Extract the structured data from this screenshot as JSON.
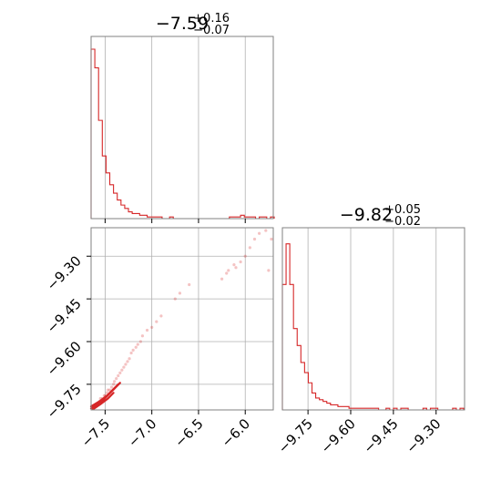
{
  "colors": {
    "series": "#d62728",
    "grid": "#b0b0b0",
    "frame": "#808080"
  },
  "chart_data": [
    {
      "type": "histogram",
      "title": {
        "median": "−7.59",
        "plus": "+0.16",
        "minus": "−0.07"
      },
      "xlim": [
        -7.65,
        -5.7
      ],
      "xticks": [
        -7.5,
        -7.0,
        -6.5,
        -6.0
      ],
      "grid": true,
      "bins": [
        [
          -7.65,
          1.0
        ],
        [
          -7.61,
          0.89
        ],
        [
          -7.57,
          0.58
        ],
        [
          -7.53,
          0.37
        ],
        [
          -7.49,
          0.27
        ],
        [
          -7.45,
          0.2
        ],
        [
          -7.41,
          0.15
        ],
        [
          -7.37,
          0.11
        ],
        [
          -7.33,
          0.08
        ],
        [
          -7.29,
          0.06
        ],
        [
          -7.25,
          0.04
        ],
        [
          -7.21,
          0.03
        ],
        [
          -7.17,
          0.03
        ],
        [
          -7.13,
          0.02
        ],
        [
          -7.09,
          0.02
        ],
        [
          -7.05,
          0.01
        ],
        [
          -7.01,
          0.01
        ],
        [
          -6.97,
          0.01
        ],
        [
          -6.93,
          0.01
        ],
        [
          -6.89,
          0.0
        ],
        [
          -6.85,
          0.0
        ],
        [
          -6.81,
          0.01
        ],
        [
          -6.77,
          0.0
        ],
        [
          -6.73,
          0.0
        ],
        [
          -6.69,
          0.0
        ],
        [
          -6.65,
          0.0
        ],
        [
          -6.61,
          0.0
        ],
        [
          -6.57,
          0.0
        ],
        [
          -6.53,
          0.0
        ],
        [
          -6.49,
          0.0
        ],
        [
          -6.45,
          0.0
        ],
        [
          -6.41,
          0.0
        ],
        [
          -6.37,
          0.0
        ],
        [
          -6.33,
          0.0
        ],
        [
          -6.29,
          0.0
        ],
        [
          -6.25,
          0.0
        ],
        [
          -6.21,
          0.0
        ],
        [
          -6.17,
          0.01
        ],
        [
          -6.13,
          0.01
        ],
        [
          -6.09,
          0.01
        ],
        [
          -6.05,
          0.02
        ],
        [
          -6.01,
          0.01
        ],
        [
          -5.97,
          0.01
        ],
        [
          -5.93,
          0.01
        ],
        [
          -5.89,
          0.0
        ],
        [
          -5.85,
          0.01
        ],
        [
          -5.81,
          0.01
        ],
        [
          -5.77,
          0.0
        ],
        [
          -5.73,
          0.01
        ]
      ]
    },
    {
      "type": "scatter",
      "xlim": [
        -7.65,
        -5.7
      ],
      "ylim": [
        -9.84,
        -9.2
      ],
      "xticks": [
        -7.5,
        -7.0,
        -6.5,
        -6.0
      ],
      "yticks": [
        -9.3,
        -9.45,
        -9.6,
        -9.75
      ],
      "xtick_labels": [
        "−7.5",
        "−7.0",
        "−6.5",
        "−6.0"
      ],
      "ytick_labels": [
        "−9.30",
        "−9.45",
        "−9.60",
        "−9.75"
      ],
      "grid": true,
      "points": [
        [
          -7.62,
          -9.83
        ],
        [
          -7.6,
          -9.82
        ],
        [
          -7.58,
          -9.82
        ],
        [
          -7.56,
          -9.81
        ],
        [
          -7.55,
          -9.8
        ],
        [
          -7.53,
          -9.8
        ],
        [
          -7.51,
          -9.79
        ],
        [
          -7.5,
          -9.79
        ],
        [
          -7.48,
          -9.78
        ],
        [
          -7.47,
          -9.77
        ],
        [
          -7.45,
          -9.77
        ],
        [
          -7.43,
          -9.76
        ],
        [
          -7.41,
          -9.75
        ],
        [
          -7.4,
          -9.74
        ],
        [
          -7.38,
          -9.73
        ],
        [
          -7.36,
          -9.72
        ],
        [
          -7.34,
          -9.71
        ],
        [
          -7.32,
          -9.7
        ],
        [
          -7.3,
          -9.69
        ],
        [
          -7.28,
          -9.68
        ],
        [
          -7.26,
          -9.67
        ],
        [
          -7.24,
          -9.66
        ],
        [
          -7.22,
          -9.64
        ],
        [
          -7.2,
          -9.63
        ],
        [
          -7.17,
          -9.62
        ],
        [
          -7.15,
          -9.61
        ],
        [
          -7.12,
          -9.6
        ],
        [
          -7.1,
          -9.58
        ],
        [
          -7.05,
          -9.56
        ],
        [
          -7.0,
          -9.55
        ],
        [
          -6.95,
          -9.53
        ],
        [
          -6.9,
          -9.51
        ],
        [
          -6.75,
          -9.45
        ],
        [
          -6.7,
          -9.43
        ],
        [
          -6.6,
          -9.4
        ],
        [
          -6.25,
          -9.38
        ],
        [
          -6.2,
          -9.36
        ],
        [
          -6.18,
          -9.35
        ],
        [
          -6.12,
          -9.33
        ],
        [
          -6.1,
          -9.34
        ],
        [
          -6.05,
          -9.32
        ],
        [
          -6.0,
          -9.3
        ],
        [
          -5.95,
          -9.27
        ],
        [
          -5.9,
          -9.24
        ],
        [
          -5.85,
          -9.22
        ],
        [
          -5.78,
          -9.21
        ],
        [
          -5.75,
          -9.35
        ],
        [
          -5.72,
          -9.24
        ]
      ],
      "contour_lines": [
        [
          [
            -7.65,
            -9.835
          ],
          [
            -7.58,
            -9.82
          ],
          [
            -7.52,
            -9.805
          ],
          [
            -7.46,
            -9.785
          ],
          [
            -7.4,
            -9.765
          ],
          [
            -7.34,
            -9.745
          ]
        ],
        [
          [
            -7.65,
            -9.828
          ],
          [
            -7.56,
            -9.81
          ],
          [
            -7.48,
            -9.79
          ],
          [
            -7.42,
            -9.77
          ],
          [
            -7.36,
            -9.75
          ]
        ],
        [
          [
            -7.63,
            -9.838
          ],
          [
            -7.55,
            -9.82
          ],
          [
            -7.47,
            -9.8
          ],
          [
            -7.41,
            -9.78
          ]
        ]
      ]
    },
    {
      "type": "histogram",
      "title": {
        "median": "−9.82",
        "plus": "+0.05",
        "minus": "−0.02"
      },
      "xlim": [
        -9.84,
        -9.2
      ],
      "xticks": [
        -9.75,
        -9.6,
        -9.45,
        -9.3
      ],
      "xtick_labels": [
        "−9.75",
        "−9.60",
        "−9.45",
        "−9.30"
      ],
      "grid": true,
      "bins": [
        [
          -9.84,
          0.74
        ],
        [
          -9.827,
          0.98
        ],
        [
          -9.814,
          0.74
        ],
        [
          -9.801,
          0.48
        ],
        [
          -9.788,
          0.38
        ],
        [
          -9.775,
          0.28
        ],
        [
          -9.762,
          0.22
        ],
        [
          -9.749,
          0.16
        ],
        [
          -9.736,
          0.1
        ],
        [
          -9.723,
          0.07
        ],
        [
          -9.71,
          0.06
        ],
        [
          -9.697,
          0.05
        ],
        [
          -9.684,
          0.04
        ],
        [
          -9.671,
          0.03
        ],
        [
          -9.658,
          0.03
        ],
        [
          -9.645,
          0.02
        ],
        [
          -9.632,
          0.02
        ],
        [
          -9.619,
          0.02
        ],
        [
          -9.606,
          0.01
        ],
        [
          -9.593,
          0.01
        ],
        [
          -9.58,
          0.01
        ],
        [
          -9.567,
          0.01
        ],
        [
          -9.554,
          0.01
        ],
        [
          -9.541,
          0.01
        ],
        [
          -9.528,
          0.01
        ],
        [
          -9.515,
          0.01
        ],
        [
          -9.502,
          0.0
        ],
        [
          -9.489,
          0.0
        ],
        [
          -9.476,
          0.01
        ],
        [
          -9.463,
          0.0
        ],
        [
          -9.45,
          0.01
        ],
        [
          -9.437,
          0.0
        ],
        [
          -9.424,
          0.01
        ],
        [
          -9.411,
          0.01
        ],
        [
          -9.398,
          0.0
        ],
        [
          -9.385,
          0.0
        ],
        [
          -9.372,
          0.0
        ],
        [
          -9.359,
          0.0
        ],
        [
          -9.346,
          0.01
        ],
        [
          -9.333,
          0.0
        ],
        [
          -9.32,
          0.01
        ],
        [
          -9.307,
          0.01
        ],
        [
          -9.294,
          0.0
        ],
        [
          -9.281,
          0.0
        ],
        [
          -9.268,
          0.0
        ],
        [
          -9.255,
          0.0
        ],
        [
          -9.242,
          0.01
        ],
        [
          -9.229,
          0.0
        ],
        [
          -9.216,
          0.01
        ]
      ]
    }
  ]
}
